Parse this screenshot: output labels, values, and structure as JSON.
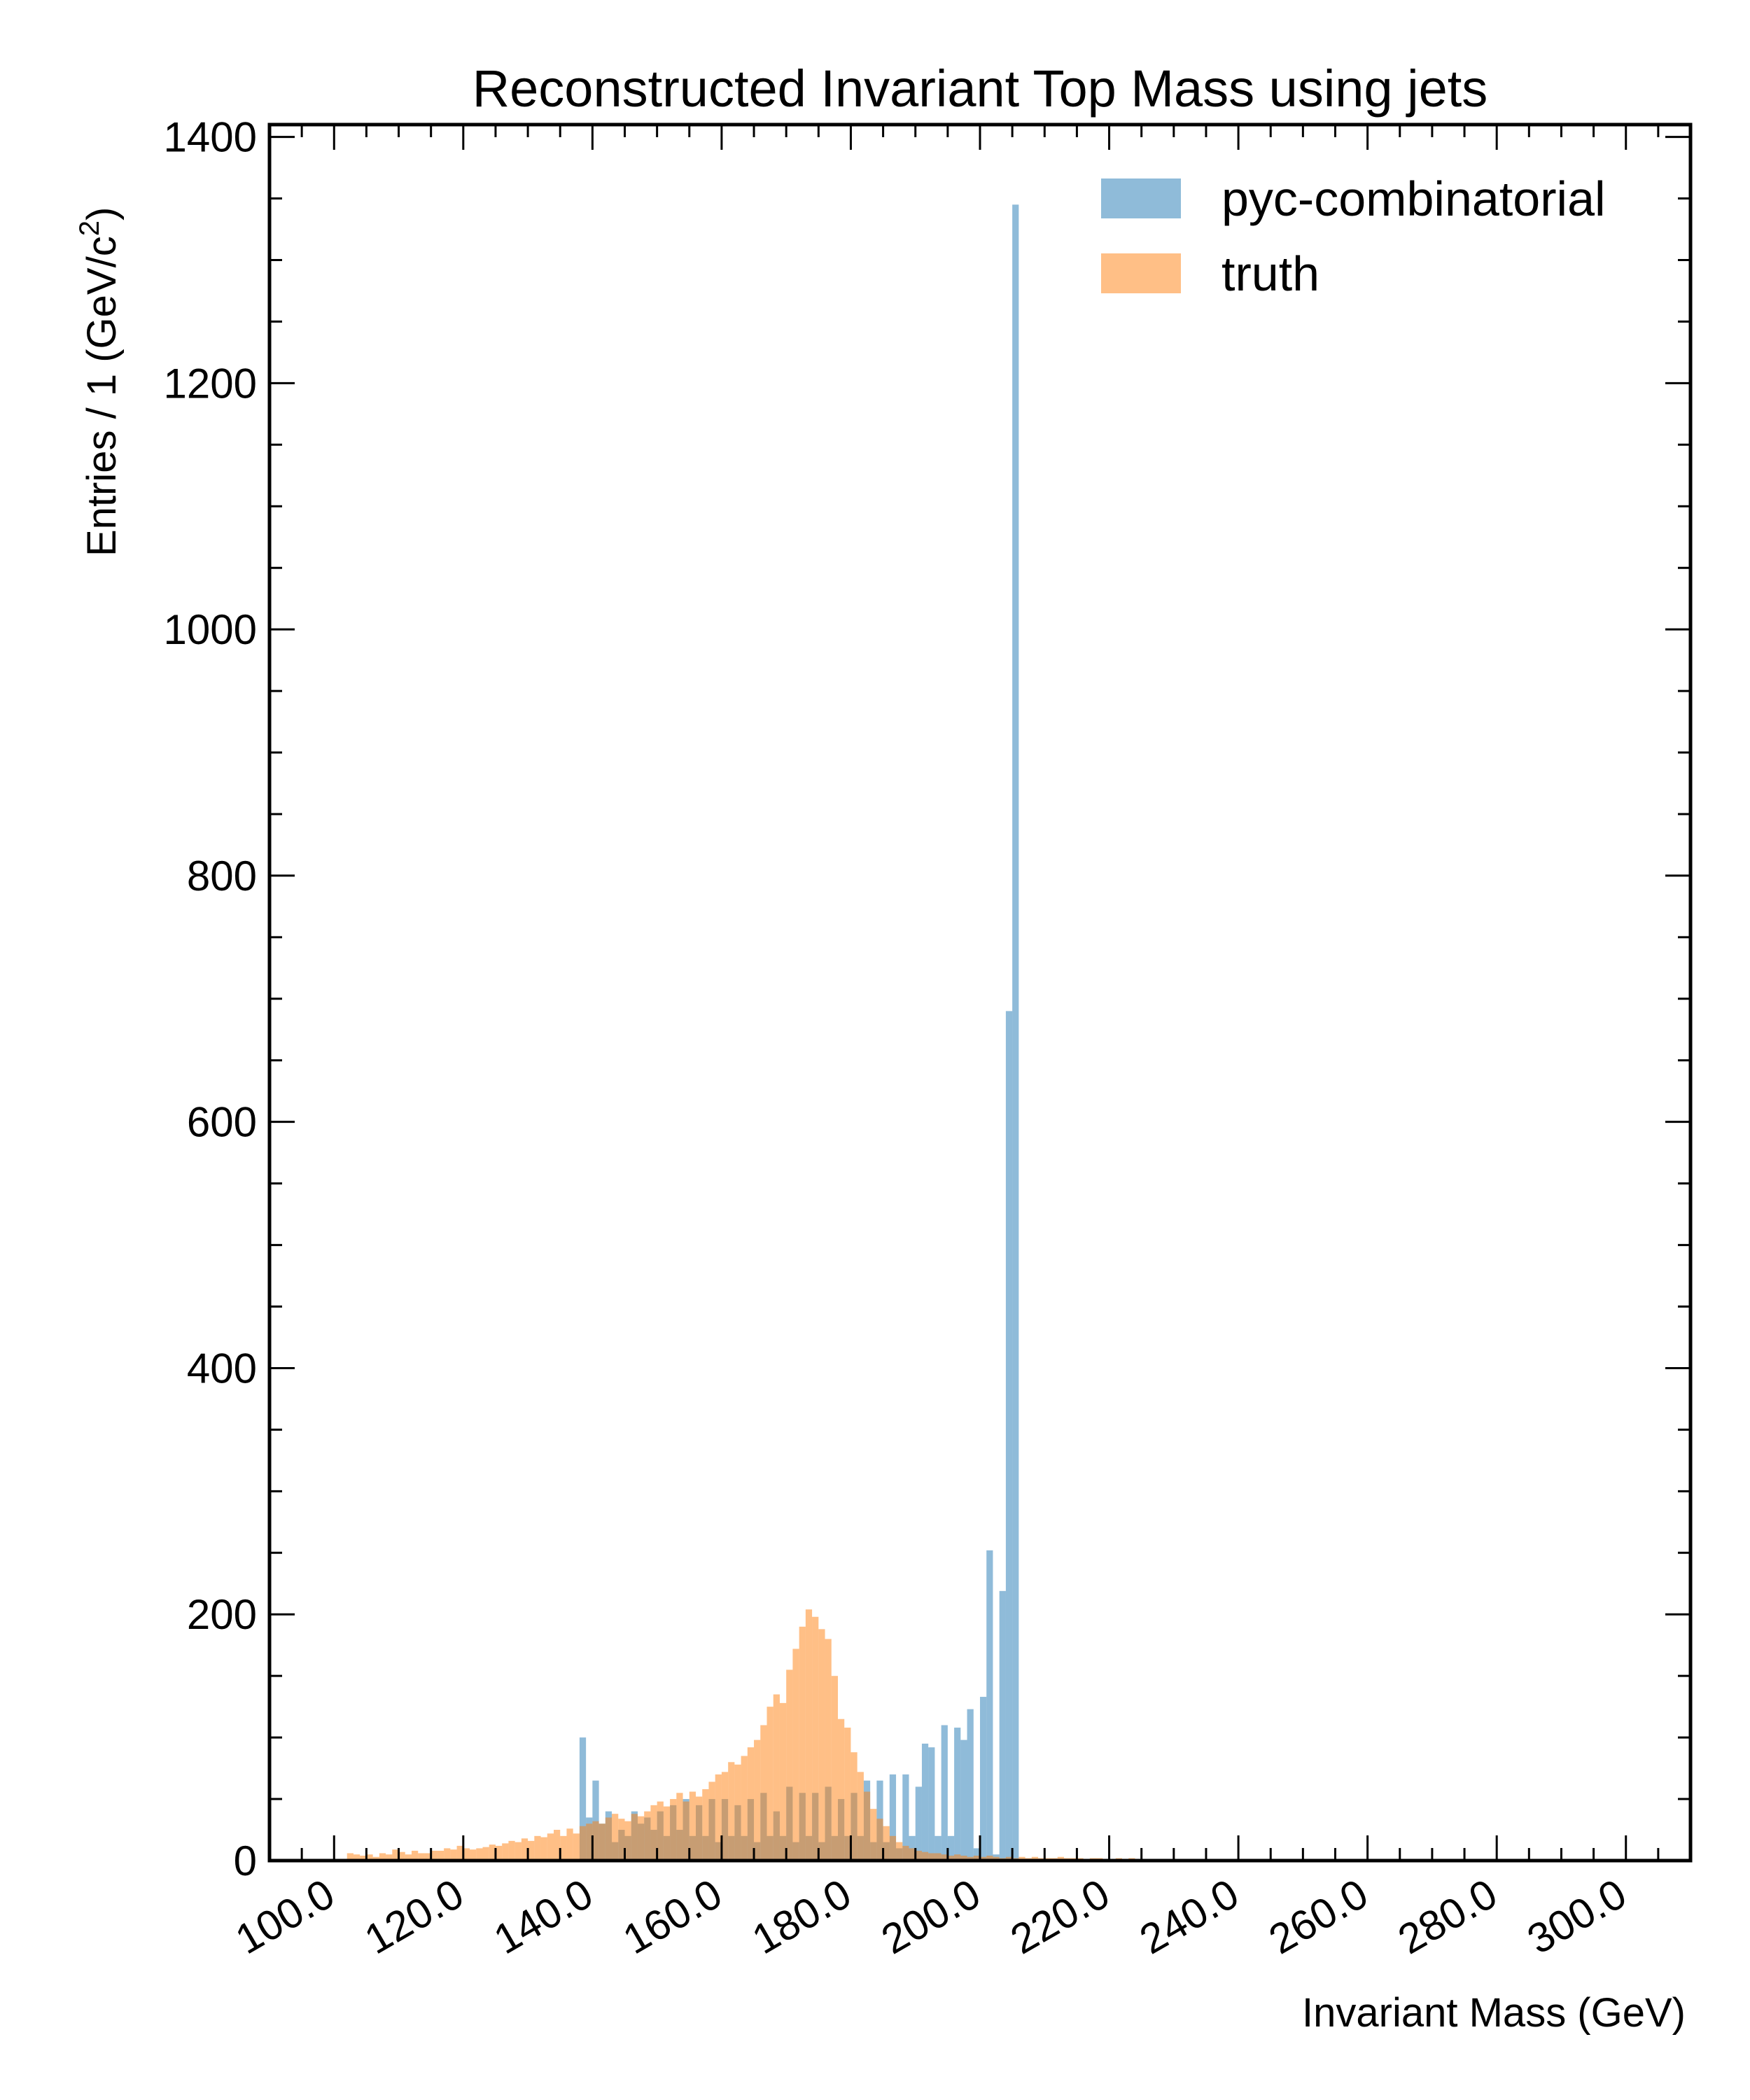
{
  "chart_data": {
    "type": "bar",
    "title": "Reconstructed Invariant Top Mass using jets",
    "xlabel": "Invariant Mass (GeV)",
    "ylabel_main": "Entries  / 1 (GeV/c",
    "ylabel_sup": "2",
    "ylabel_close": ")",
    "xlim": [
      90,
      310
    ],
    "ylim": [
      0,
      1410
    ],
    "bin_width": 1,
    "x_ticks": [
      100,
      120,
      140,
      160,
      180,
      200,
      220,
      240,
      260,
      280,
      300
    ],
    "x_tick_labels": [
      "100.0",
      "120.0",
      "140.0",
      "160.0",
      "180.0",
      "200.0",
      "220.0",
      "240.0",
      "260.0",
      "280.0",
      "300.0"
    ],
    "y_ticks": [
      0,
      200,
      400,
      600,
      800,
      1000,
      1200,
      1400
    ],
    "y_tick_labels": [
      "0",
      "200",
      "400",
      "600",
      "800",
      "1000",
      "1200",
      "1400"
    ],
    "legend_position": "top-right",
    "series": [
      {
        "name": "pyc-combinatorial",
        "color": "#1f77b4",
        "opacity": 0.5,
        "bins": [
          [
            138,
            100
          ],
          [
            139,
            35
          ],
          [
            140,
            65
          ],
          [
            141,
            30
          ],
          [
            142,
            40
          ],
          [
            143,
            15
          ],
          [
            144,
            25
          ],
          [
            145,
            20
          ],
          [
            146,
            40
          ],
          [
            147,
            30
          ],
          [
            148,
            35
          ],
          [
            149,
            25
          ],
          [
            150,
            40
          ],
          [
            151,
            20
          ],
          [
            152,
            45
          ],
          [
            153,
            25
          ],
          [
            154,
            50
          ],
          [
            155,
            20
          ],
          [
            156,
            45
          ],
          [
            157,
            20
          ],
          [
            158,
            50
          ],
          [
            159,
            15
          ],
          [
            160,
            50
          ],
          [
            161,
            20
          ],
          [
            162,
            45
          ],
          [
            163,
            20
          ],
          [
            164,
            50
          ],
          [
            165,
            15
          ],
          [
            166,
            55
          ],
          [
            167,
            20
          ],
          [
            168,
            40
          ],
          [
            169,
            20
          ],
          [
            170,
            60
          ],
          [
            171,
            15
          ],
          [
            172,
            55
          ],
          [
            173,
            20
          ],
          [
            174,
            55
          ],
          [
            175,
            15
          ],
          [
            176,
            60
          ],
          [
            177,
            20
          ],
          [
            178,
            50
          ],
          [
            179,
            20
          ],
          [
            180,
            55
          ],
          [
            181,
            20
          ],
          [
            182,
            65
          ],
          [
            183,
            15
          ],
          [
            184,
            65
          ],
          [
            185,
            15
          ],
          [
            186,
            70
          ],
          [
            187,
            10
          ],
          [
            188,
            70
          ],
          [
            189,
            20
          ],
          [
            190,
            60
          ],
          [
            191,
            95
          ],
          [
            192,
            92
          ],
          [
            193,
            20
          ],
          [
            194,
            110
          ],
          [
            195,
            20
          ],
          [
            196,
            108
          ],
          [
            197,
            98
          ],
          [
            198,
            123
          ],
          [
            199,
            10
          ],
          [
            200,
            133
          ],
          [
            201,
            252
          ],
          [
            202,
            5
          ],
          [
            203,
            219
          ],
          [
            204,
            690
          ],
          [
            205,
            1345
          ]
        ]
      },
      {
        "name": "truth",
        "color": "#ff7f0e",
        "opacity": 0.5,
        "bins": [
          [
            102,
            6
          ],
          [
            103,
            5
          ],
          [
            104,
            4
          ],
          [
            105,
            5
          ],
          [
            106,
            3
          ],
          [
            107,
            6
          ],
          [
            108,
            5
          ],
          [
            109,
            9
          ],
          [
            110,
            7
          ],
          [
            111,
            5
          ],
          [
            112,
            8
          ],
          [
            113,
            6
          ],
          [
            114,
            6
          ],
          [
            115,
            8
          ],
          [
            116,
            8
          ],
          [
            117,
            10
          ],
          [
            118,
            9
          ],
          [
            119,
            12
          ],
          [
            120,
            10
          ],
          [
            121,
            9
          ],
          [
            122,
            10
          ],
          [
            123,
            11
          ],
          [
            124,
            13
          ],
          [
            125,
            12
          ],
          [
            126,
            14
          ],
          [
            127,
            16
          ],
          [
            128,
            15
          ],
          [
            129,
            18
          ],
          [
            130,
            16
          ],
          [
            131,
            20
          ],
          [
            132,
            19
          ],
          [
            133,
            22
          ],
          [
            134,
            25
          ],
          [
            135,
            20
          ],
          [
            136,
            26
          ],
          [
            137,
            22
          ],
          [
            138,
            28
          ],
          [
            139,
            30
          ],
          [
            140,
            32
          ],
          [
            141,
            30
          ],
          [
            142,
            35
          ],
          [
            143,
            38
          ],
          [
            144,
            34
          ],
          [
            145,
            32
          ],
          [
            146,
            38
          ],
          [
            147,
            36
          ],
          [
            148,
            40
          ],
          [
            149,
            45
          ],
          [
            150,
            48
          ],
          [
            151,
            44
          ],
          [
            152,
            50
          ],
          [
            153,
            55
          ],
          [
            154,
            48
          ],
          [
            155,
            56
          ],
          [
            156,
            52
          ],
          [
            157,
            58
          ],
          [
            158,
            64
          ],
          [
            159,
            70
          ],
          [
            160,
            72
          ],
          [
            161,
            80
          ],
          [
            162,
            78
          ],
          [
            163,
            85
          ],
          [
            164,
            92
          ],
          [
            165,
            98
          ],
          [
            166,
            110
          ],
          [
            167,
            125
          ],
          [
            168,
            135
          ],
          [
            169,
            128
          ],
          [
            170,
            155
          ],
          [
            171,
            172
          ],
          [
            172,
            190
          ],
          [
            173,
            204
          ],
          [
            174,
            198
          ],
          [
            175,
            188
          ],
          [
            176,
            180
          ],
          [
            177,
            150
          ],
          [
            178,
            115
          ],
          [
            179,
            108
          ],
          [
            180,
            88
          ],
          [
            181,
            72
          ],
          [
            182,
            56
          ],
          [
            183,
            42
          ],
          [
            184,
            34
          ],
          [
            185,
            28
          ],
          [
            186,
            20
          ],
          [
            187,
            15
          ],
          [
            188,
            12
          ],
          [
            189,
            10
          ],
          [
            190,
            8
          ],
          [
            191,
            7
          ],
          [
            192,
            6
          ],
          [
            193,
            6
          ],
          [
            194,
            5
          ],
          [
            195,
            4
          ],
          [
            196,
            5
          ],
          [
            197,
            4
          ],
          [
            198,
            3
          ],
          [
            199,
            4
          ],
          [
            200,
            3
          ],
          [
            201,
            4
          ],
          [
            202,
            3
          ],
          [
            203,
            2
          ],
          [
            204,
            3
          ],
          [
            205,
            2
          ],
          [
            206,
            3
          ],
          [
            207,
            2
          ],
          [
            208,
            3
          ],
          [
            209,
            2
          ],
          [
            210,
            2
          ],
          [
            211,
            2
          ],
          [
            212,
            3
          ],
          [
            213,
            2
          ],
          [
            214,
            2
          ],
          [
            215,
            2
          ],
          [
            216,
            1
          ],
          [
            217,
            2
          ],
          [
            218,
            2
          ],
          [
            219,
            1
          ],
          [
            220,
            1
          ],
          [
            221,
            2
          ],
          [
            222,
            1
          ],
          [
            223,
            2
          ],
          [
            224,
            1
          ],
          [
            225,
            1
          ],
          [
            226,
            1
          ],
          [
            227,
            1
          ],
          [
            228,
            1
          ],
          [
            229,
            1
          ],
          [
            230,
            1
          ],
          [
            231,
            1
          ],
          [
            232,
            1
          ],
          [
            233,
            1
          ],
          [
            234,
            1
          ],
          [
            235,
            1
          ],
          [
            236,
            1
          ],
          [
            237,
            1
          ],
          [
            238,
            1
          ],
          [
            239,
            1
          ],
          [
            240,
            1
          ],
          [
            241,
            1
          ],
          [
            242,
            1
          ],
          [
            243,
            1
          ],
          [
            244,
            1
          ],
          [
            245,
            1
          ],
          [
            246,
            1
          ],
          [
            247,
            1
          ],
          [
            248,
            1
          ],
          [
            249,
            1
          ],
          [
            250,
            1
          ],
          [
            251,
            1
          ],
          [
            252,
            1
          ],
          [
            253,
            1
          ],
          [
            254,
            1
          ],
          [
            255,
            1
          ],
          [
            256,
            1
          ],
          [
            257,
            1
          ],
          [
            258,
            1
          ],
          [
            259,
            1
          ],
          [
            260,
            1
          ]
        ]
      }
    ]
  }
}
